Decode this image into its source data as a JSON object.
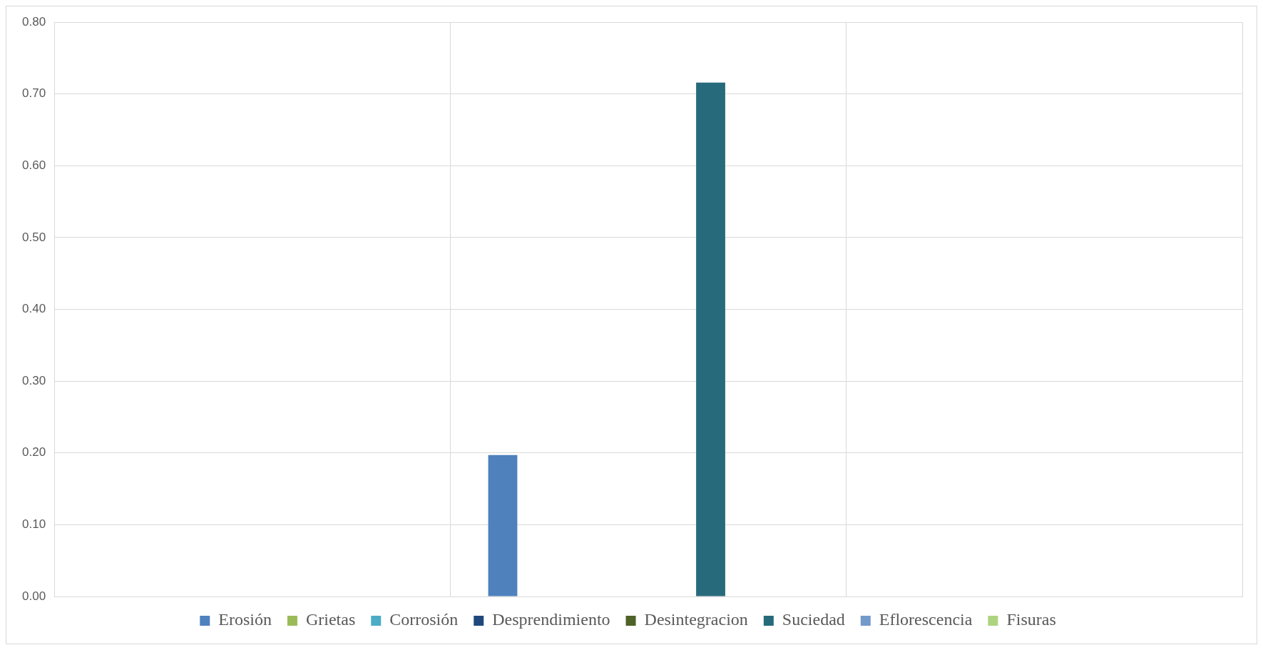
{
  "chart_data": {
    "type": "bar",
    "categories": [
      null,
      null,
      null
    ],
    "series": [
      {
        "name": "Erosión",
        "color": "#4f81bd",
        "values": [
          0,
          0.197,
          0
        ]
      },
      {
        "name": "Grietas",
        "color": "#9bbb59",
        "values": [
          0,
          0,
          0
        ]
      },
      {
        "name": "Corrosión",
        "color": "#4bacc6",
        "values": [
          0,
          0,
          0
        ]
      },
      {
        "name": "Desprendimiento",
        "color": "#1f497d",
        "values": [
          0,
          0,
          0
        ]
      },
      {
        "name": "Desintegracion",
        "color": "#4f6228",
        "values": [
          0,
          0,
          0
        ]
      },
      {
        "name": "Suciedad",
        "color": "#276a7c",
        "values": [
          0,
          0.716,
          0
        ]
      },
      {
        "name": "Eflorescencia",
        "color": "#729aca",
        "values": [
          0,
          0,
          0
        ]
      },
      {
        "name": "Fisuras",
        "color": "#afd480",
        "values": [
          0,
          0,
          0
        ]
      }
    ],
    "ylim": [
      0,
      0.8
    ],
    "yticks": [
      {
        "value": 0,
        "label": "0.00"
      },
      {
        "value": 0.1,
        "label": "0.10"
      },
      {
        "value": 0.2,
        "label": "0.20"
      },
      {
        "value": 0.3,
        "label": "0.30"
      },
      {
        "value": 0.4,
        "label": "0.40"
      },
      {
        "value": 0.5,
        "label": "0.50"
      },
      {
        "value": 0.6,
        "label": "0.60"
      },
      {
        "value": 0.7,
        "label": "0.70"
      },
      {
        "value": 0.8,
        "label": "0.80"
      }
    ],
    "grid": true,
    "legend": "bottom"
  }
}
